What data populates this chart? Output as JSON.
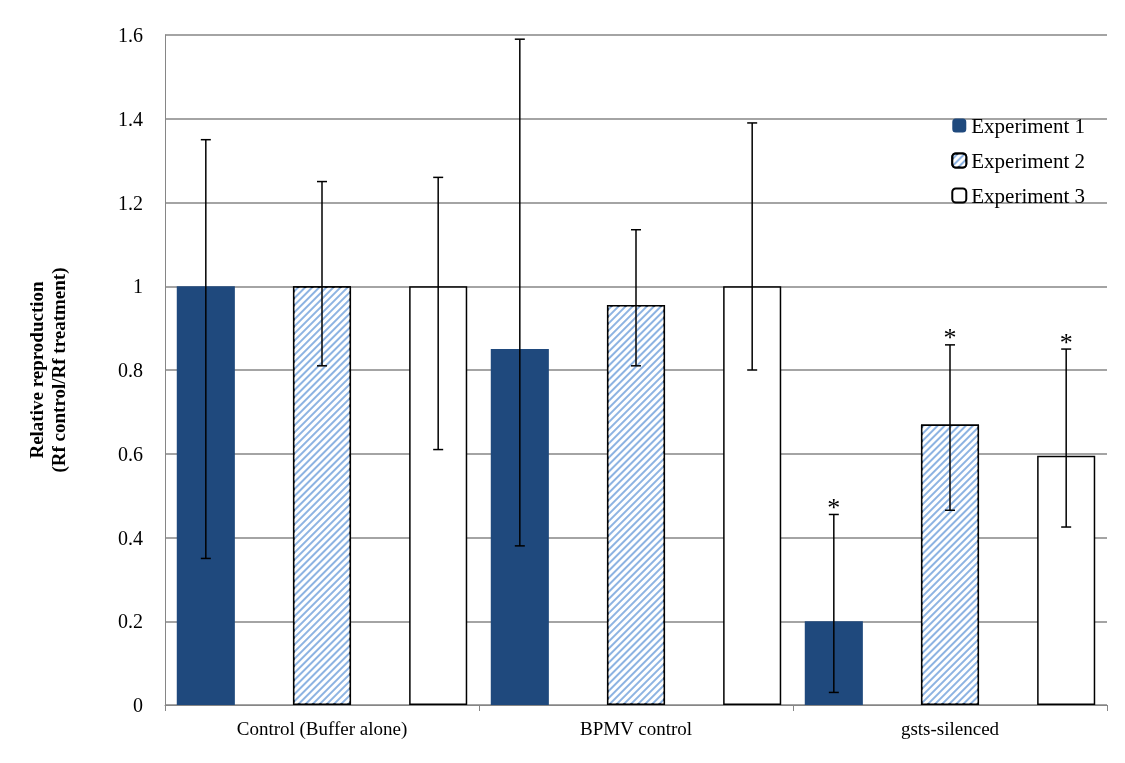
{
  "chart_data": {
    "type": "bar",
    "ylabel": "Relative reproduction\n(Rf control/Rf treatment)",
    "categories": [
      "Control (Buffer alone)",
      "BPMV control",
      "gsts-silenced"
    ],
    "series": [
      {
        "name": "Experiment 1",
        "color": "#1f497d",
        "values": [
          1.0,
          0.85,
          0.2
        ],
        "errors": [
          [
            0.35,
            1.35
          ],
          [
            0.38,
            1.59
          ],
          [
            0.03,
            0.455
          ]
        ]
      },
      {
        "name": "Experiment 2",
        "color": "#8db3e2",
        "values": [
          1.0,
          0.955,
          0.67
        ],
        "errors": [
          [
            0.81,
            1.25
          ],
          [
            0.81,
            1.135
          ],
          [
            0.465,
            0.86
          ]
        ]
      },
      {
        "name": "Experiment 3",
        "color": "#ffffff",
        "values": [
          1.0,
          1.0,
          0.595
        ],
        "errors": [
          [
            0.61,
            1.26
          ],
          [
            0.8,
            1.39
          ],
          [
            0.425,
            0.85
          ]
        ]
      }
    ],
    "ylim": [
      0,
      1.6
    ],
    "yticks": [
      0,
      0.2,
      0.4,
      0.6,
      0.8,
      1,
      1.2,
      1.4,
      1.6
    ],
    "grid": "y",
    "legend": "top right",
    "annotations": [
      "*",
      "*",
      "*"
    ]
  }
}
